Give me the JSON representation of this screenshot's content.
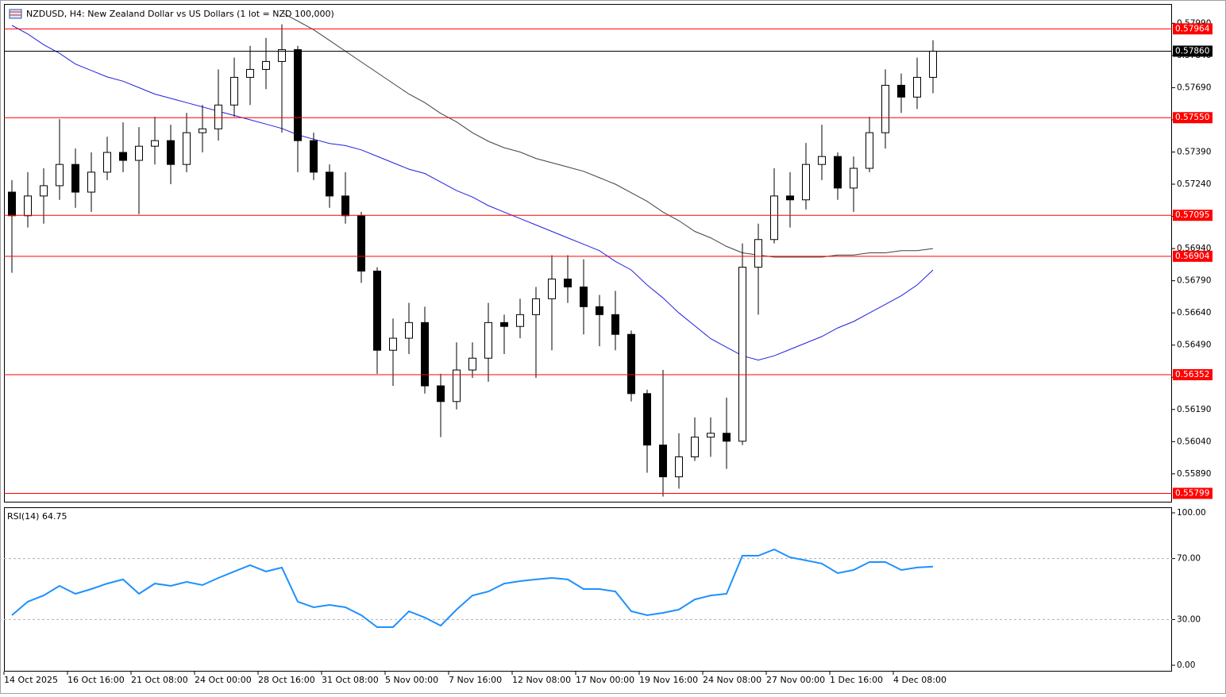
{
  "chart_data": [
    {
      "type": "candlestick",
      "title": "NZDUSD, H4:  New Zealand Dollar vs US Dollars (1 lot = NZD 100,000)",
      "x_labels": [
        "14 Oct 2025",
        "16 Oct 16:00",
        "21 Oct 08:00",
        "24 Oct 00:00",
        "28 Oct 16:00",
        "31 Oct 08:00",
        "5 Nov 00:00",
        "7 Nov 16:00",
        "12 Nov 08:00",
        "17 Nov 00:00",
        "19 Nov 16:00",
        "24 Nov 08:00",
        "27 Nov 00:00",
        "1 Dec 16:00",
        "4 Dec 08:00"
      ],
      "open": [
        0.57203,
        0.57093,
        0.57185,
        0.57233,
        0.57332,
        0.57203,
        0.57296,
        0.57388,
        0.57351,
        0.57417,
        0.57443,
        0.57332,
        0.5748,
        0.57498,
        0.57609,
        0.57738,
        0.57775,
        0.57812,
        0.57867,
        0.57443,
        0.57296,
        0.57185,
        0.57093,
        0.56835,
        0.56466,
        0.56522,
        0.56595,
        0.563,
        0.56227,
        0.56374,
        0.56429,
        0.56595,
        0.56577,
        0.56632,
        0.56706,
        0.56798,
        0.56761,
        0.56669,
        0.56632,
        0.5654,
        0.56264,
        0.56024,
        0.55876,
        0.55969,
        0.56061,
        0.56079,
        0.56042,
        0.56853,
        0.56982,
        0.57185,
        0.57167,
        0.57332,
        0.57369,
        0.57222,
        0.57314,
        0.5748,
        0.57701,
        0.57646,
        0.57738
      ],
      "high": [
        0.57259,
        0.57296,
        0.57314,
        0.57543,
        0.57406,
        0.57388,
        0.57461,
        0.57528,
        0.57506,
        0.57554,
        0.57517,
        0.57572,
        0.57609,
        0.57775,
        0.5783,
        0.57885,
        0.57922,
        0.57985,
        0.57885,
        0.5748,
        0.57332,
        0.57296,
        0.57111,
        0.56853,
        0.56614,
        0.56687,
        0.56669,
        0.56356,
        0.56503,
        0.56503,
        0.56687,
        0.56632,
        0.56706,
        0.56761,
        0.56909,
        0.56909,
        0.5689,
        0.56724,
        0.56743,
        0.56558,
        0.56282,
        0.56374,
        0.56079,
        0.56153,
        0.56153,
        0.56245,
        0.56964,
        0.57056,
        0.57314,
        0.57296,
        0.57432,
        0.57517,
        0.57388,
        0.57369,
        0.57554,
        0.57775,
        0.57756,
        0.5783,
        0.57911
      ],
      "low": [
        0.56827,
        0.57038,
        0.57056,
        0.57167,
        0.5713,
        0.57111,
        0.57259,
        0.57296,
        0.571,
        0.57332,
        0.5724,
        0.57296,
        0.57388,
        0.57443,
        0.57554,
        0.57609,
        0.57683,
        0.5748,
        0.57296,
        0.57259,
        0.5713,
        0.57056,
        0.5678,
        0.56356,
        0.563,
        0.56448,
        0.56264,
        0.56061,
        0.5619,
        0.56337,
        0.56319,
        0.56448,
        0.56522,
        0.56337,
        0.56466,
        0.56687,
        0.5654,
        0.56485,
        0.56466,
        0.56227,
        0.55895,
        0.55784,
        0.55821,
        0.5595,
        0.55969,
        0.55913,
        0.56024,
        0.56632,
        0.56964,
        0.57038,
        0.57122,
        0.57259,
        0.57167,
        0.57111,
        0.57296,
        0.57406,
        0.57572,
        0.5759,
        0.57664
      ],
      "close": [
        0.57093,
        0.57185,
        0.57233,
        0.57332,
        0.57203,
        0.57296,
        0.57388,
        0.57351,
        0.57417,
        0.57443,
        0.57332,
        0.5748,
        0.57498,
        0.57609,
        0.57738,
        0.57775,
        0.57812,
        0.57867,
        0.57443,
        0.57296,
        0.57185,
        0.57093,
        0.56835,
        0.56466,
        0.56522,
        0.56595,
        0.563,
        0.56227,
        0.56374,
        0.56429,
        0.56595,
        0.56577,
        0.56632,
        0.56706,
        0.56798,
        0.56761,
        0.56669,
        0.56632,
        0.5654,
        0.56264,
        0.56024,
        0.55876,
        0.55969,
        0.56061,
        0.56079,
        0.56042,
        0.56853,
        0.56982,
        0.57185,
        0.57167,
        0.57332,
        0.57369,
        0.57222,
        0.57314,
        0.5748,
        0.57701,
        0.57646,
        0.57738,
        0.5786
      ],
      "moving_averages": [
        {
          "color": "#404040",
          "values": [
            null,
            null,
            null,
            null,
            null,
            null,
            null,
            null,
            null,
            null,
            null,
            null,
            null,
            null,
            null,
            null,
            null,
            0.5804,
            0.58,
            0.5796,
            0.5791,
            0.5786,
            0.5781,
            0.5776,
            0.5771,
            0.5766,
            0.5762,
            0.5757,
            0.5753,
            0.5748,
            0.5744,
            0.5741,
            0.5739,
            0.5736,
            0.5734,
            0.5732,
            0.573,
            0.5727,
            0.5724,
            0.572,
            0.5716,
            0.5711,
            0.5707,
            0.5702,
            0.5699,
            0.5695,
            0.5692,
            0.5691,
            0.569,
            0.569,
            0.569,
            0.569,
            0.5691,
            0.5691,
            0.5692,
            0.5692,
            0.5693,
            0.5693,
            0.5694
          ]
        },
        {
          "color": "#2020e0",
          "values": [
            0.5798,
            0.5794,
            0.5789,
            0.5785,
            0.578,
            0.5777,
            0.5774,
            0.5772,
            0.5769,
            0.5766,
            0.5764,
            0.5762,
            0.576,
            0.5758,
            0.5756,
            0.5754,
            0.5752,
            0.575,
            0.5747,
            0.5745,
            0.5743,
            0.5742,
            0.574,
            0.5737,
            0.5734,
            0.5731,
            0.5729,
            0.5725,
            0.5721,
            0.5718,
            0.5714,
            0.5711,
            0.5708,
            0.5705,
            0.5702,
            0.5699,
            0.5696,
            0.5693,
            0.5688,
            0.5684,
            0.5677,
            0.5671,
            0.5664,
            0.5658,
            0.5652,
            0.5648,
            0.5644,
            0.5642,
            0.5644,
            0.5647,
            0.565,
            0.5653,
            0.5657,
            0.566,
            0.5664,
            0.5668,
            0.5672,
            0.5677,
            0.5684
          ]
        }
      ],
      "levels": [
        {
          "value": 0.57964,
          "label": "0.57964"
        },
        {
          "value": 0.5755,
          "label": "0.57550"
        },
        {
          "value": 0.57095,
          "label": "0.57095"
        },
        {
          "value": 0.56904,
          "label": "0.56904"
        },
        {
          "value": 0.56352,
          "label": "0.56352"
        },
        {
          "value": 0.55799,
          "label": "0.55799"
        }
      ],
      "level_color": "#ff0000",
      "current_price": {
        "value": 0.5786,
        "label": "0.57860"
      },
      "ylim": [
        0.5576,
        0.5808
      ],
      "yticks": [
        {
          "value": 0.5799,
          "label": "0.57990"
        },
        {
          "value": 0.5784,
          "label": "0.57840"
        },
        {
          "value": 0.5769,
          "label": "0.57690"
        },
        {
          "value": 0.5754,
          "label": "0.57540"
        },
        {
          "value": 0.5739,
          "label": "0.57390"
        },
        {
          "value": 0.5724,
          "label": "0.57240"
        },
        {
          "value": 0.5709,
          "label": "0.57090"
        },
        {
          "value": 0.5694,
          "label": "0.56940"
        },
        {
          "value": 0.5679,
          "label": "0.56790"
        },
        {
          "value": 0.5664,
          "label": "0.56640"
        },
        {
          "value": 0.5649,
          "label": "0.56490"
        },
        {
          "value": 0.5634,
          "label": "0.56340"
        },
        {
          "value": 0.5619,
          "label": "0.56190"
        },
        {
          "value": 0.5604,
          "label": "0.56040"
        },
        {
          "value": 0.5589,
          "label": "0.55890"
        }
      ]
    },
    {
      "type": "line",
      "title": "RSI(14) 64.75",
      "color": "#1e90ff",
      "values": [
        32.8,
        41.7,
        45.8,
        52.1,
        46.9,
        50.0,
        53.6,
        56.3,
        46.9,
        53.6,
        52.1,
        54.7,
        52.6,
        57.3,
        61.5,
        65.6,
        61.5,
        64.1,
        41.7,
        38.0,
        39.6,
        38.0,
        32.8,
        25.0,
        25.0,
        35.4,
        31.3,
        26.0,
        36.5,
        45.8,
        48.4,
        53.6,
        55.2,
        56.3,
        57.3,
        56.3,
        50.0,
        50.0,
        48.4,
        35.4,
        32.8,
        34.4,
        36.5,
        43.2,
        45.8,
        46.9,
        71.9,
        71.9,
        76.0,
        70.8,
        68.8,
        66.7,
        60.4,
        62.5,
        67.7,
        67.7,
        62.5,
        64.1,
        64.75
      ],
      "levels": [
        70,
        30
      ],
      "ylim": [
        0,
        100
      ],
      "yticks": [
        {
          "value": 100,
          "label": "100.00"
        },
        {
          "value": 70,
          "label": "70.00"
        },
        {
          "value": 30,
          "label": "30.00"
        },
        {
          "value": 0,
          "label": "0.00"
        }
      ]
    }
  ]
}
